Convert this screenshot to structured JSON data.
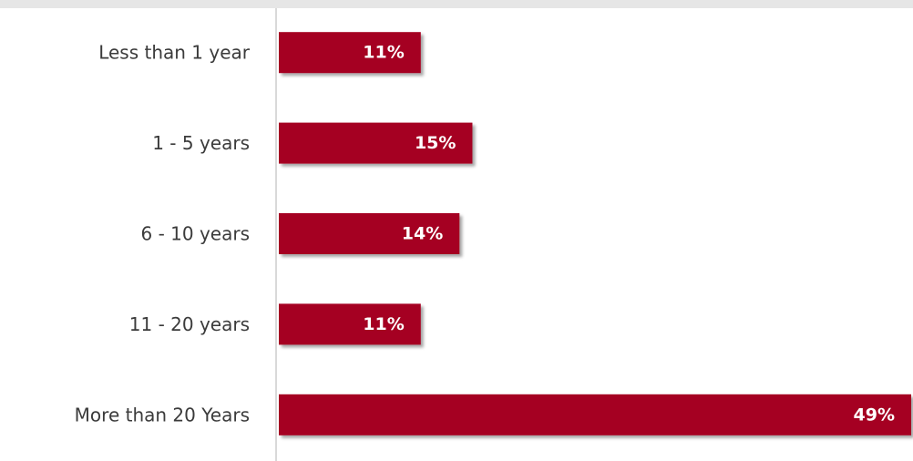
{
  "colors": {
    "bar": "#a50021",
    "bar_shadow": "#9a9a9a",
    "axis": "#d9d9d9",
    "label_text": "#3b3b3b",
    "value_text": "#ffffff",
    "top_band": "#e6e6e6"
  },
  "chart_data": {
    "type": "bar",
    "orientation": "horizontal",
    "categories": [
      "Less than 1 year",
      "1 - 5 years",
      "6 - 10 years",
      "11 - 20 years",
      "More than 20 Years"
    ],
    "values": [
      11,
      15,
      14,
      11,
      49
    ],
    "value_labels": [
      "11%",
      "15%",
      "14%",
      "11%",
      "49%"
    ],
    "unit": "%",
    "xlim": [
      0,
      49
    ],
    "grid": false,
    "legend": "none"
  }
}
